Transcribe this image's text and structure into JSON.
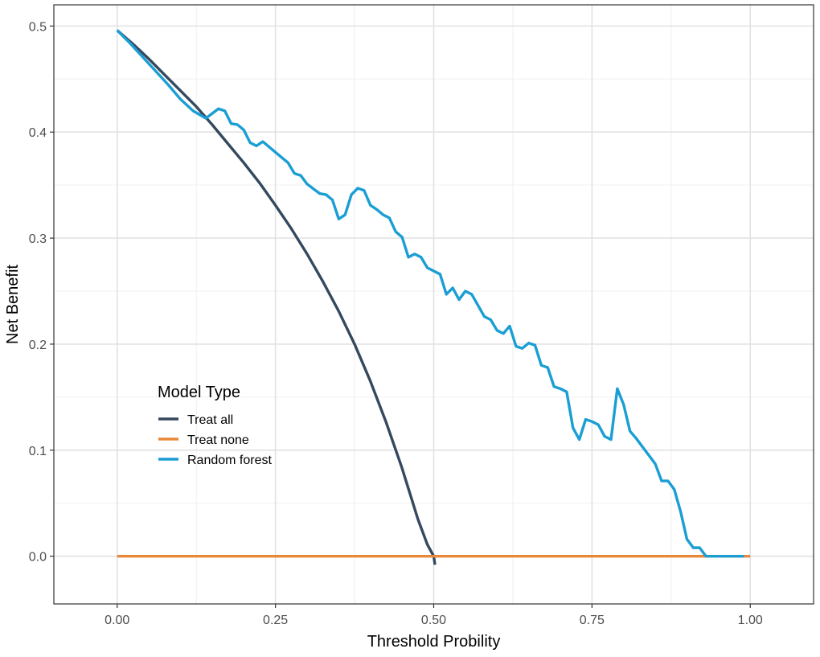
{
  "chart_data": {
    "type": "line",
    "title": "",
    "xlabel": "Threshold Probility",
    "ylabel": "Net Benefit",
    "xlim": [
      -0.1,
      1.1
    ],
    "ylim": [
      -0.045,
      0.52
    ],
    "x_ticks": [
      0.0,
      0.25,
      0.5,
      0.75,
      1.0
    ],
    "x_tick_labels": [
      "0.00",
      "0.25",
      "0.50",
      "0.75",
      "1.00"
    ],
    "y_ticks": [
      0.0,
      0.1,
      0.2,
      0.3,
      0.4,
      0.5
    ],
    "y_tick_labels": [
      "0.0",
      "0.1",
      "0.2",
      "0.3",
      "0.4",
      "0.5"
    ],
    "grid": true,
    "legend": {
      "title": "Model Type",
      "placement": "center-left"
    },
    "series": [
      {
        "name": "Treat all",
        "color": "#34495e",
        "x": [
          0.0,
          0.025,
          0.05,
          0.075,
          0.1,
          0.125,
          0.15,
          0.175,
          0.2,
          0.225,
          0.25,
          0.275,
          0.3,
          0.325,
          0.35,
          0.375,
          0.4,
          0.425,
          0.45,
          0.475,
          0.49,
          0.5,
          0.502
        ],
        "y": [
          0.496,
          0.483,
          0.469,
          0.454,
          0.439,
          0.424,
          0.407,
          0.389,
          0.371,
          0.352,
          0.331,
          0.309,
          0.285,
          0.259,
          0.231,
          0.2,
          0.165,
          0.126,
          0.083,
          0.035,
          0.011,
          0.0,
          -0.008
        ]
      },
      {
        "name": "Treat none",
        "color": "#e8893a",
        "x": [
          0.0,
          1.0
        ],
        "y": [
          0.0,
          0.0
        ]
      },
      {
        "name": "Random forest",
        "color": "#1a9ed4",
        "x": [
          0.0,
          0.02,
          0.04,
          0.06,
          0.08,
          0.1,
          0.12,
          0.14,
          0.16,
          0.17,
          0.18,
          0.19,
          0.2,
          0.21,
          0.22,
          0.23,
          0.25,
          0.27,
          0.28,
          0.29,
          0.3,
          0.32,
          0.33,
          0.34,
          0.35,
          0.36,
          0.37,
          0.38,
          0.39,
          0.4,
          0.41,
          0.42,
          0.43,
          0.44,
          0.45,
          0.46,
          0.47,
          0.48,
          0.49,
          0.5,
          0.51,
          0.52,
          0.53,
          0.54,
          0.55,
          0.56,
          0.58,
          0.59,
          0.6,
          0.61,
          0.62,
          0.63,
          0.64,
          0.65,
          0.66,
          0.67,
          0.68,
          0.69,
          0.7,
          0.71,
          0.72,
          0.73,
          0.74,
          0.75,
          0.76,
          0.77,
          0.78,
          0.79,
          0.8,
          0.81,
          0.82,
          0.83,
          0.84,
          0.85,
          0.86,
          0.87,
          0.88,
          0.89,
          0.9,
          0.91,
          0.92,
          0.93,
          0.95,
          0.97,
          0.99
        ],
        "y": [
          0.496,
          0.484,
          0.471,
          0.458,
          0.445,
          0.431,
          0.42,
          0.413,
          0.422,
          0.42,
          0.408,
          0.407,
          0.402,
          0.39,
          0.387,
          0.391,
          0.381,
          0.371,
          0.361,
          0.359,
          0.351,
          0.342,
          0.341,
          0.336,
          0.318,
          0.322,
          0.341,
          0.347,
          0.345,
          0.331,
          0.327,
          0.322,
          0.319,
          0.306,
          0.301,
          0.282,
          0.285,
          0.282,
          0.272,
          0.269,
          0.266,
          0.247,
          0.253,
          0.242,
          0.25,
          0.247,
          0.226,
          0.223,
          0.213,
          0.21,
          0.217,
          0.198,
          0.196,
          0.201,
          0.199,
          0.18,
          0.178,
          0.16,
          0.158,
          0.155,
          0.121,
          0.11,
          0.129,
          0.127,
          0.124,
          0.113,
          0.11,
          0.158,
          0.143,
          0.118,
          0.111,
          0.103,
          0.095,
          0.087,
          0.071,
          0.071,
          0.063,
          0.042,
          0.016,
          0.008,
          0.008,
          0.0,
          0.0,
          0.0,
          0.0
        ]
      }
    ]
  }
}
